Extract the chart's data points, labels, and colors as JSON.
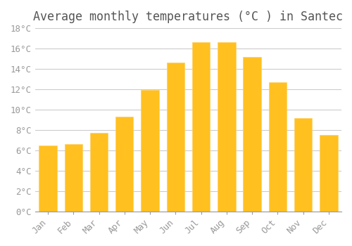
{
  "title": "Average monthly temperatures (°C ) in Santec",
  "months": [
    "Jan",
    "Feb",
    "Mar",
    "Apr",
    "May",
    "Jun",
    "Jul",
    "Aug",
    "Sep",
    "Oct",
    "Nov",
    "Dec"
  ],
  "values": [
    6.5,
    6.6,
    7.7,
    9.3,
    11.9,
    14.6,
    16.6,
    16.6,
    15.2,
    12.7,
    9.2,
    7.5
  ],
  "bar_color": "#FFC020",
  "bar_edge_color": "#FFD060",
  "background_color": "#FFFFFF",
  "grid_color": "#CCCCCC",
  "text_color": "#999999",
  "title_color": "#555555",
  "ylim": [
    0,
    18
  ],
  "yticks": [
    0,
    2,
    4,
    6,
    8,
    10,
    12,
    14,
    16,
    18
  ],
  "title_fontsize": 12,
  "tick_fontsize": 9,
  "font_family": "monospace"
}
